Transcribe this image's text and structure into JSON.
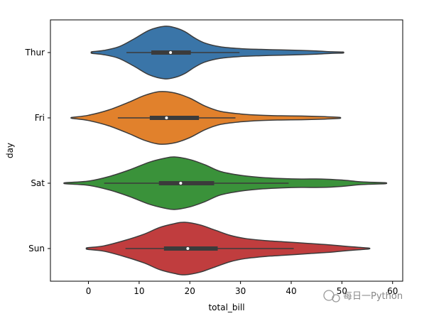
{
  "chart_data": {
    "type": "violin",
    "orientation": "horizontal",
    "xlabel": "total_bill",
    "ylabel": "day",
    "xlim": [
      -7.5,
      62
    ],
    "xticks": [
      0,
      10,
      20,
      30,
      40,
      50,
      60
    ],
    "grid": false,
    "categories": [
      "Thur",
      "Fri",
      "Sat",
      "Sun"
    ],
    "series": [
      {
        "name": "Thur",
        "color": "#3a75a8",
        "extent": [
          0.7,
          50.2
        ],
        "whisker": [
          7.5,
          29.8
        ],
        "q1": 12.4,
        "q3": 20.2,
        "median": 16.2,
        "density": [
          [
            0.7,
            0.03
          ],
          [
            3,
            0.08
          ],
          [
            6,
            0.22
          ],
          [
            9,
            0.52
          ],
          [
            12,
            0.85
          ],
          [
            15,
            1.0
          ],
          [
            17,
            0.95
          ],
          [
            19,
            0.8
          ],
          [
            21,
            0.55
          ],
          [
            23,
            0.36
          ],
          [
            26,
            0.22
          ],
          [
            30,
            0.15
          ],
          [
            34,
            0.12
          ],
          [
            38,
            0.1
          ],
          [
            42,
            0.08
          ],
          [
            45,
            0.06
          ],
          [
            48,
            0.03
          ],
          [
            50.2,
            0.02
          ]
        ]
      },
      {
        "name": "Fri",
        "color": "#e1812c",
        "extent": [
          -3.2,
          49.5
        ],
        "whisker": [
          5.8,
          29.0
        ],
        "q1": 12.1,
        "q3": 21.8,
        "median": 15.4,
        "density": [
          [
            -3.2,
            0.02
          ],
          [
            0,
            0.1
          ],
          [
            4,
            0.3
          ],
          [
            8,
            0.6
          ],
          [
            11,
            0.85
          ],
          [
            14,
            1.0
          ],
          [
            17,
            0.95
          ],
          [
            20,
            0.75
          ],
          [
            23,
            0.45
          ],
          [
            26,
            0.25
          ],
          [
            30,
            0.15
          ],
          [
            34,
            0.1
          ],
          [
            38,
            0.08
          ],
          [
            42,
            0.07
          ],
          [
            46,
            0.05
          ],
          [
            49.5,
            0.02
          ]
        ]
      },
      {
        "name": "Sat",
        "color": "#3a923a",
        "extent": [
          -4.5,
          58.5
        ],
        "whisker": [
          3.1,
          39.5
        ],
        "q1": 13.9,
        "q3": 24.8,
        "median": 18.2,
        "density": [
          [
            -4.5,
            0.02
          ],
          [
            0,
            0.08
          ],
          [
            4,
            0.25
          ],
          [
            8,
            0.5
          ],
          [
            12,
            0.8
          ],
          [
            15,
            0.95
          ],
          [
            17,
            1.0
          ],
          [
            20,
            0.9
          ],
          [
            23,
            0.7
          ],
          [
            26,
            0.45
          ],
          [
            30,
            0.3
          ],
          [
            34,
            0.22
          ],
          [
            38,
            0.18
          ],
          [
            42,
            0.16
          ],
          [
            46,
            0.16
          ],
          [
            50,
            0.12
          ],
          [
            54,
            0.05
          ],
          [
            58.5,
            0.02
          ]
        ]
      },
      {
        "name": "Sun",
        "color": "#c03d3e",
        "extent": [
          -0.2,
          55.2
        ],
        "whisker": [
          7.3,
          40.5
        ],
        "q1": 14.9,
        "q3": 25.5,
        "median": 19.6,
        "density": [
          [
            -0.2,
            0.03
          ],
          [
            3,
            0.1
          ],
          [
            7,
            0.3
          ],
          [
            11,
            0.55
          ],
          [
            14,
            0.8
          ],
          [
            17,
            0.95
          ],
          [
            19,
            1.0
          ],
          [
            22,
            0.9
          ],
          [
            25,
            0.7
          ],
          [
            28,
            0.5
          ],
          [
            31,
            0.38
          ],
          [
            35,
            0.3
          ],
          [
            39,
            0.25
          ],
          [
            43,
            0.2
          ],
          [
            47,
            0.15
          ],
          [
            51,
            0.08
          ],
          [
            55.2,
            0.02
          ]
        ]
      }
    ]
  },
  "watermark": {
    "text": "每日一Python"
  }
}
